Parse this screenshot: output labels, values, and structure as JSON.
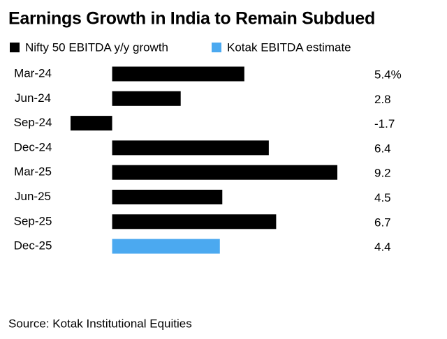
{
  "chart_data": {
    "type": "bar",
    "orientation": "horizontal",
    "title": "Earnings Growth in India to Remain Subdued",
    "source": "Source: Kotak Institutional Equities",
    "categories": [
      "Mar-24",
      "Jun-24",
      "Sep-24",
      "Dec-24",
      "Mar-25",
      "Jun-25",
      "Sep-25",
      "Dec-25"
    ],
    "series": [
      {
        "name": "Nifty 50 EBITDA y/y growth",
        "color": "#000000",
        "values": [
          5.4,
          2.8,
          -1.7,
          6.4,
          9.2,
          4.5,
          6.7,
          null
        ],
        "value_labels": [
          "5.4%",
          "2.8",
          "-1.7",
          "6.4",
          "9.2",
          "4.5",
          "6.7",
          null
        ]
      },
      {
        "name": "Kotak EBITDA estimate",
        "color": "#4ba9f0",
        "values": [
          null,
          null,
          null,
          null,
          null,
          null,
          null,
          4.4
        ],
        "value_labels": [
          null,
          null,
          null,
          null,
          null,
          null,
          null,
          "4.4"
        ]
      }
    ]
  }
}
